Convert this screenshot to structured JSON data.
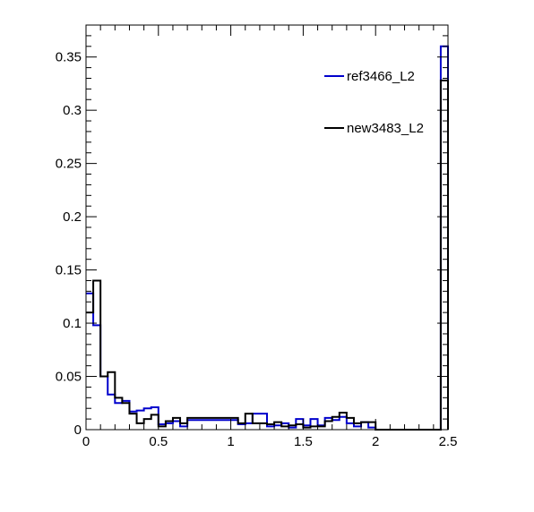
{
  "chart_data": {
    "type": "histogram",
    "title": "",
    "xlabel": "",
    "ylabel": "",
    "xlim": [
      0,
      2.5
    ],
    "ylim": [
      0,
      0.38
    ],
    "bin_width": 0.05,
    "grid": false,
    "legend_position": "top-right",
    "x_ticks": [
      {
        "value": 0,
        "label": "0"
      },
      {
        "value": 0.5,
        "label": "0.5"
      },
      {
        "value": 1,
        "label": "1"
      },
      {
        "value": 1.5,
        "label": "1.5"
      },
      {
        "value": 2,
        "label": "2"
      },
      {
        "value": 2.5,
        "label": "2.5"
      }
    ],
    "y_ticks": [
      {
        "value": 0,
        "label": "0"
      },
      {
        "value": 0.05,
        "label": "0.05"
      },
      {
        "value": 0.1,
        "label": "0.1"
      },
      {
        "value": 0.15,
        "label": "0.15"
      },
      {
        "value": 0.2,
        "label": "0.2"
      },
      {
        "value": 0.25,
        "label": "0.25"
      },
      {
        "value": 0.3,
        "label": "0.3"
      },
      {
        "value": 0.35,
        "label": "0.35"
      }
    ],
    "series": [
      {
        "name": "ref3466_L2",
        "color": "#0000cc",
        "values": [
          0.128,
          0.098,
          0.05,
          0.033,
          0.025,
          0.027,
          0.017,
          0.018,
          0.02,
          0.021,
          0.005,
          0.006,
          0.008,
          0.003,
          0.009,
          0.009,
          0.009,
          0.009,
          0.009,
          0.009,
          0.009,
          0.005,
          0.006,
          0.015,
          0.015,
          0.003,
          0.004,
          0.006,
          0.002,
          0.01,
          0.004,
          0.01,
          0.004,
          0.011,
          0.009,
          0.012,
          0.006,
          0.003,
          0.007,
          0.002,
          0.0,
          0.0,
          0.0,
          0.0,
          0.0,
          0.0,
          0.0,
          0.0,
          0.0,
          0.36
        ]
      },
      {
        "name": "new3483_L2",
        "color": "#000000",
        "values": [
          0.11,
          0.14,
          0.05,
          0.054,
          0.03,
          0.025,
          0.015,
          0.006,
          0.01,
          0.014,
          0.003,
          0.008,
          0.011,
          0.006,
          0.011,
          0.011,
          0.011,
          0.011,
          0.011,
          0.011,
          0.011,
          0.006,
          0.015,
          0.006,
          0.006,
          0.005,
          0.007,
          0.003,
          0.004,
          0.005,
          0.002,
          0.003,
          0.003,
          0.008,
          0.012,
          0.016,
          0.011,
          0.006,
          0.007,
          0.007,
          0.0,
          0.0,
          0.0,
          0.0,
          0.0,
          0.0,
          0.0,
          0.0,
          0.0,
          0.328
        ]
      }
    ]
  }
}
